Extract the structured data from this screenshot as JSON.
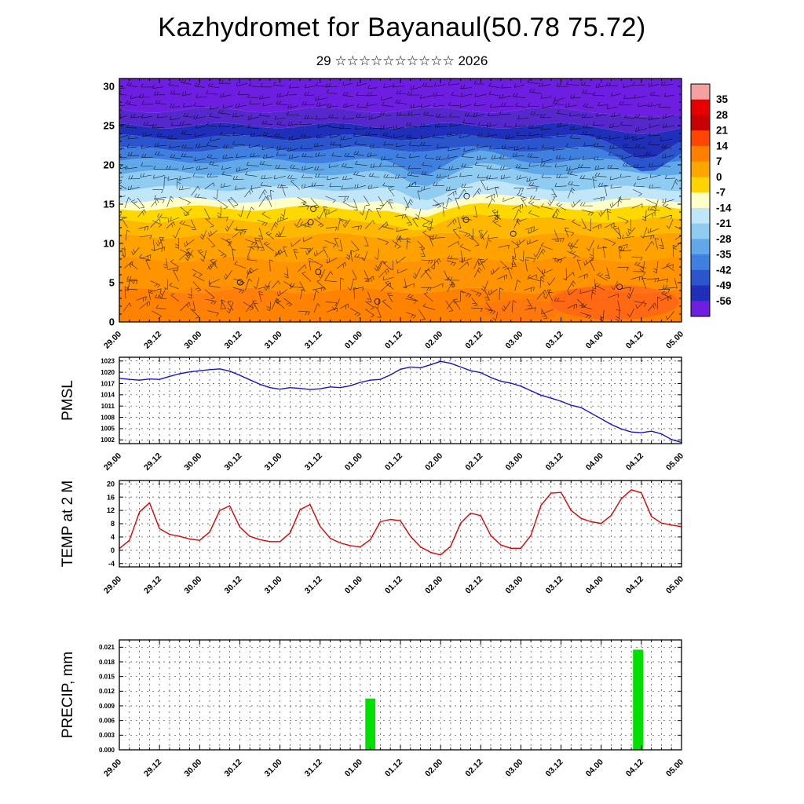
{
  "title": "Kazhydromet for Bayanaul(50.78 75.72)",
  "subtitle": "29 ☆☆☆☆☆☆☆☆☆☆ 2026",
  "time_labels": [
    "29.00",
    "29.12",
    "30.00",
    "30.12",
    "31.00",
    "31.12",
    "01.00",
    "01.12",
    "02.00",
    "02.12",
    "03.00",
    "03.12",
    "04.00",
    "04.12",
    "05.00"
  ],
  "chart_data": [
    {
      "id": "upper-air",
      "type": "heatmap",
      "description": "Temperature height-time cross-section with wind barbs",
      "x_range_hours": [
        0,
        168
      ],
      "ylim": [
        0,
        31
      ],
      "yticks": [
        0,
        5,
        10,
        15,
        20,
        25,
        30
      ],
      "band_boundaries": [
        4,
        8,
        11,
        13,
        14.5,
        15.5,
        17,
        19,
        20.5,
        22,
        23.5,
        25,
        27
      ],
      "band_colors": [
        "#ff8200",
        "#ff9300",
        "#ffa200",
        "#ffb800",
        "#ffd800",
        "#ffffc8",
        "#c0e6f8",
        "#90ccf2",
        "#60a8e8",
        "#3f7fdf",
        "#2a55cc",
        "#1f2fba",
        "#5528cc",
        "#6e1ee0"
      ],
      "colorbar": {
        "tick_labels": [
          "35",
          "28",
          "21",
          "14",
          "7",
          "0",
          "-7",
          "-14",
          "-21",
          "-28",
          "-35",
          "-42",
          "-49",
          "-56"
        ],
        "colors": [
          "#f2a0a0",
          "#e60000",
          "#c80000",
          "#ff4500",
          "#ff7f00",
          "#ffa500",
          "#ffd400",
          "#ffffc8",
          "#c0e6f8",
          "#90ccf2",
          "#60a8e8",
          "#3f7fdf",
          "#2a55cc",
          "#1f2fba",
          "#6e1ee0"
        ]
      }
    },
    {
      "id": "pmsl",
      "type": "line",
      "label": "PMSL",
      "line_color": "#1515cc",
      "ylim": [
        1001,
        1024
      ],
      "yticks": [
        1002,
        1005,
        1008,
        1011,
        1014,
        1017,
        1020,
        1023
      ],
      "hours_start": 0,
      "hours_step": 3,
      "values": [
        1018.4,
        1018.1,
        1017.9,
        1018.2,
        1018.1,
        1018.9,
        1019.6,
        1020.1,
        1020.4,
        1020.7,
        1020.9,
        1020.3,
        1019.2,
        1018.0,
        1016.8,
        1015.9,
        1015.5,
        1015.9,
        1015.7,
        1015.4,
        1015.6,
        1016.1,
        1015.9,
        1016.4,
        1017.3,
        1017.9,
        1018.1,
        1019.3,
        1020.8,
        1021.4,
        1021.2,
        1022.0,
        1022.9,
        1022.4,
        1021.4,
        1020.4,
        1019.9,
        1018.6,
        1017.6,
        1017.1,
        1016.3,
        1015.1,
        1013.9,
        1013.1,
        1012.3,
        1011.2,
        1010.6,
        1009.1,
        1007.6,
        1006.1,
        1004.9,
        1004.1,
        1003.9,
        1004.3,
        1003.6,
        1002.1,
        1001.3
      ]
    },
    {
      "id": "temp2m",
      "type": "line",
      "label": "TEMP at 2 M",
      "line_color": "#e00000",
      "ylim": [
        -5,
        21
      ],
      "yticks": [
        -4,
        0,
        4,
        8,
        12,
        16,
        20
      ],
      "hours_start": 0,
      "hours_step": 3,
      "values": [
        0.5,
        3.0,
        11.5,
        14.3,
        6.5,
        4.8,
        4.2,
        3.4,
        3.0,
        5.5,
        12.0,
        13.4,
        7.0,
        4.2,
        3.2,
        2.6,
        2.6,
        5.2,
        12.2,
        13.8,
        7.2,
        3.6,
        2.2,
        1.4,
        1.0,
        3.2,
        8.6,
        9.3,
        8.9,
        4.2,
        1.0,
        -0.6,
        -1.4,
        1.2,
        8.2,
        11.2,
        10.4,
        4.4,
        1.6,
        0.6,
        0.6,
        4.5,
        13.5,
        17.2,
        17.4,
        12.0,
        9.6,
        8.6,
        8.1,
        10.5,
        15.5,
        18.2,
        17.3,
        10.2,
        8.2,
        7.6,
        7.1
      ]
    },
    {
      "id": "precip",
      "type": "bar",
      "label": "PRECIP, mm",
      "bar_color": "#00e000",
      "ylim": [
        0,
        0.0225
      ],
      "yticks": [
        0,
        0.003,
        0.006,
        0.009,
        0.012,
        0.015,
        0.018,
        0.021
      ],
      "ytick_labels": [
        "0.000",
        "0.003",
        "0.006",
        "0.009",
        "0.012",
        "0.015",
        "0.018",
        "0.021"
      ],
      "bars": [
        {
          "hour": 75,
          "width_hours": 3,
          "value": 0.0105
        },
        {
          "hour": 155,
          "width_hours": 3,
          "value": 0.0205
        }
      ]
    }
  ]
}
